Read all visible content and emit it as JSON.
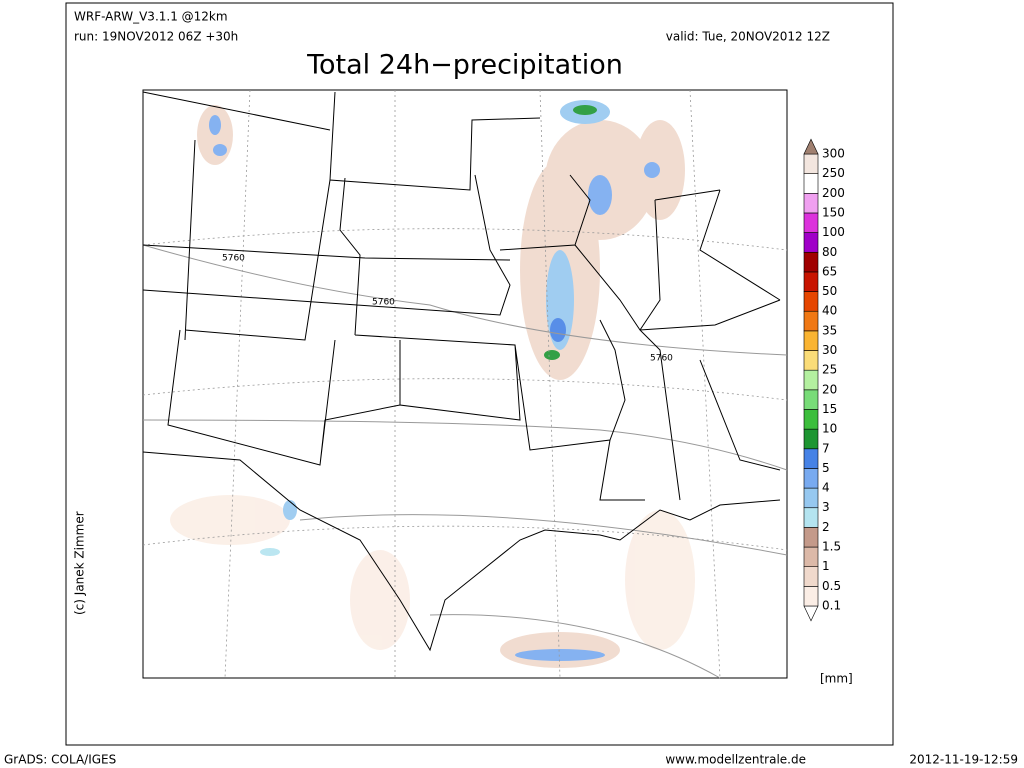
{
  "header": {
    "model": "WRF-ARW_V3.1.1 @12km",
    "run": "run: 19NOV2012 06Z +30h",
    "valid": "valid: Tue, 20NOV2012 12Z",
    "title": "Total 24h−precipitation"
  },
  "map": {
    "contour_labels": [
      "5760",
      "5760",
      "5760"
    ]
  },
  "credit": "(c) Janek Zimmer",
  "colorbar": {
    "levels": [
      0.1,
      0.5,
      1,
      1.5,
      2,
      3,
      4,
      5,
      7,
      10,
      15,
      20,
      25,
      30,
      35,
      40,
      50,
      65,
      80,
      100,
      150,
      200,
      250,
      300
    ],
    "colors": [
      "#ffffff",
      "#fbeee6",
      "#f0d9cc",
      "#dcb9a8",
      "#c49a8a",
      "#b4e4f0",
      "#96c8f0",
      "#78aaf0",
      "#4682e6",
      "#1e9632",
      "#3cbe3c",
      "#78dc78",
      "#b4f0a0",
      "#fadc78",
      "#fab432",
      "#f07814",
      "#e64600",
      "#c81400",
      "#a00000",
      "#a000c8",
      "#dc32dc",
      "#f0a0f0",
      "#ffffff",
      "#f3e6df",
      "#a08070"
    ],
    "unit": "[mm]"
  },
  "footer": {
    "left": "GrADS: COLA/IGES",
    "center": "www.modellzentrale.de",
    "right": "2012-11-19-12:59"
  }
}
